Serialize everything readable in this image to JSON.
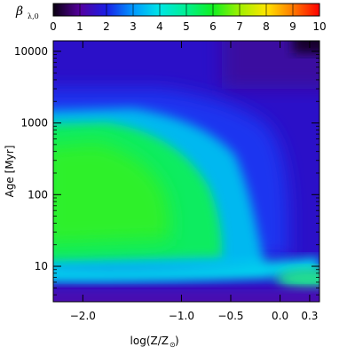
{
  "chart_data": {
    "type": "heatmap",
    "colorbar": {
      "label": "β",
      "label_sub": "λ,0",
      "range": [
        0,
        10
      ],
      "ticks": [
        "0",
        "1",
        "2",
        "3",
        "4",
        "5",
        "6",
        "7",
        "8",
        "9",
        "10"
      ],
      "stops": [
        {
          "v": 0,
          "c": "#0a0010"
        },
        {
          "v": 1,
          "c": "#55009e"
        },
        {
          "v": 2,
          "c": "#1a1fe6"
        },
        {
          "v": 3,
          "c": "#0098ff"
        },
        {
          "v": 4,
          "c": "#00e6e6"
        },
        {
          "v": 5,
          "c": "#00f090"
        },
        {
          "v": 6,
          "c": "#10f020"
        },
        {
          "v": 7,
          "c": "#a0f000"
        },
        {
          "v": 8,
          "c": "#ffe600"
        },
        {
          "v": 9,
          "c": "#ff7a00"
        },
        {
          "v": 10,
          "c": "#ff0000"
        }
      ]
    },
    "xlabel": "log(Z/Z",
    "xlabel_sub": "⊙",
    "xlabel_end": ")",
    "ylabel": "Age [Myr]",
    "xlim": [
      -2.3,
      0.4
    ],
    "ylim_log": [
      3.2,
      14000
    ],
    "x_ticks": [
      {
        "value": -2.0,
        "label": "−2.0"
      },
      {
        "value": -1.0,
        "label": "−1.0"
      },
      {
        "value": -0.5,
        "label": "−0.5"
      },
      {
        "value": 0.0,
        "label": "0.0"
      },
      {
        "value": 0.3,
        "label": "0.3"
      }
    ],
    "y_ticks": [
      {
        "value": 10,
        "label": "10"
      },
      {
        "value": 100,
        "label": "100"
      },
      {
        "value": 1000,
        "label": "1000"
      },
      {
        "value": 10000,
        "label": "10000"
      }
    ],
    "y_minor_ticks": [
      4,
      5,
      6,
      7,
      8,
      9,
      20,
      30,
      40,
      50,
      60,
      70,
      80,
      90,
      200,
      300,
      400,
      500,
      600,
      700,
      800,
      900,
      2000,
      3000,
      4000,
      5000,
      6000,
      7000,
      8000,
      9000
    ],
    "regions": [
      {
        "name": "background",
        "value": 1.5
      },
      {
        "name": "young-band",
        "x_range": [
          -2.3,
          0.4
        ],
        "logage_center": 0.58,
        "value": 2.5
      },
      {
        "name": "green-core",
        "x_range": [
          -2.3,
          -0.55
        ],
        "age_range": [
          15,
          900
        ],
        "value": 5.7
      },
      {
        "name": "cyan-shell",
        "x_range": [
          -2.3,
          -0.2
        ],
        "age_range": [
          10,
          2000
        ],
        "value": 3.8
      },
      {
        "name": "high-Z-young",
        "x_range": [
          0.0,
          0.4
        ],
        "age_range": [
          4,
          9
        ],
        "value": 4.3
      },
      {
        "name": "old-high-Z",
        "x_range": [
          0.0,
          0.4
        ],
        "age_range": [
          5000,
          14000
        ],
        "value": 0.3
      }
    ]
  }
}
